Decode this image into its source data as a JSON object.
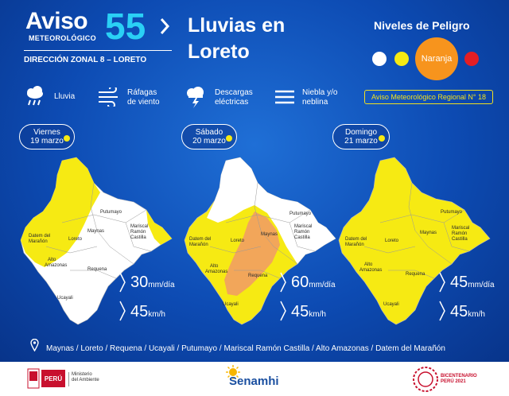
{
  "header": {
    "aviso_word": "Aviso",
    "aviso_sub": "METEOROLÓGICO",
    "aviso_number": "55",
    "direction": "DIRECCIÓN ZONAL 8 – LORETO",
    "title_line1": "Lluvias en",
    "title_line2": "Loreto"
  },
  "niveles": {
    "title": "Niveles de Peligro",
    "levels": [
      {
        "color": "#ffffff"
      },
      {
        "color": "#f6ea13"
      },
      {
        "label": "Naranja",
        "color": "#f7941d"
      },
      {
        "color": "#e31e24"
      }
    ],
    "regional_notice": "Aviso Meteorológico Regional N° 18"
  },
  "legend": [
    {
      "icon": "rain-cloud-icon",
      "label": "Lluvia"
    },
    {
      "icon": "wind-gust-icon",
      "label1": "Ráfagas",
      "label2": "de viento"
    },
    {
      "icon": "lightning-cloud-icon",
      "label1": "Descargas",
      "label2": "eléctricas"
    },
    {
      "icon": "fog-icon",
      "label1": "Niebla y/o",
      "label2": "neblina"
    }
  ],
  "days": [
    {
      "day": "Viernes",
      "date": "19 marzo",
      "rain_value": "30",
      "rain_unit": "mm/día",
      "wind_value": "45",
      "wind_unit": "km/h"
    },
    {
      "day": "Sábado",
      "date": "20 marzo",
      "rain_value": "60",
      "rain_unit": "mm/día",
      "wind_value": "45",
      "wind_unit": "km/h"
    },
    {
      "day": "Domingo",
      "date": "21 marzo",
      "rain_value": "45",
      "rain_unit": "mm/día",
      "wind_value": "45",
      "wind_unit": "km/h"
    }
  ],
  "map_labels": {
    "putumayo": "Putumayo",
    "maynas": "Maynas",
    "mariscal1": "Mariscal",
    "mariscal2": "Ramón",
    "mariscal3": "Castilla",
    "datem1": "Datem del",
    "datem2": "Marañón",
    "loreto": "Loreto",
    "alto1": "Alto",
    "alto2": "Amazonas",
    "requena": "Requena",
    "ucayali": "Ucayali"
  },
  "colors": {
    "white_level": "#ffffff",
    "yellow_level": "#f6ea13",
    "orange_level": "#f7941d",
    "red_level": "#e31e24"
  },
  "provinces_text": "Maynas / Loreto / Requena / Ucayali / Putumayo / Mariscal Ramón Castilla / Alto Amazonas / Datem del Marañón",
  "footer": {
    "peru_label": "PERÚ",
    "ministry_line1": "Ministerio",
    "ministry_line2": "del Ambiente",
    "senamhi": "Senamhi",
    "bicentenario_line1": "BICENTENARIO",
    "bicentenario_line2": "PERÚ 2021"
  }
}
